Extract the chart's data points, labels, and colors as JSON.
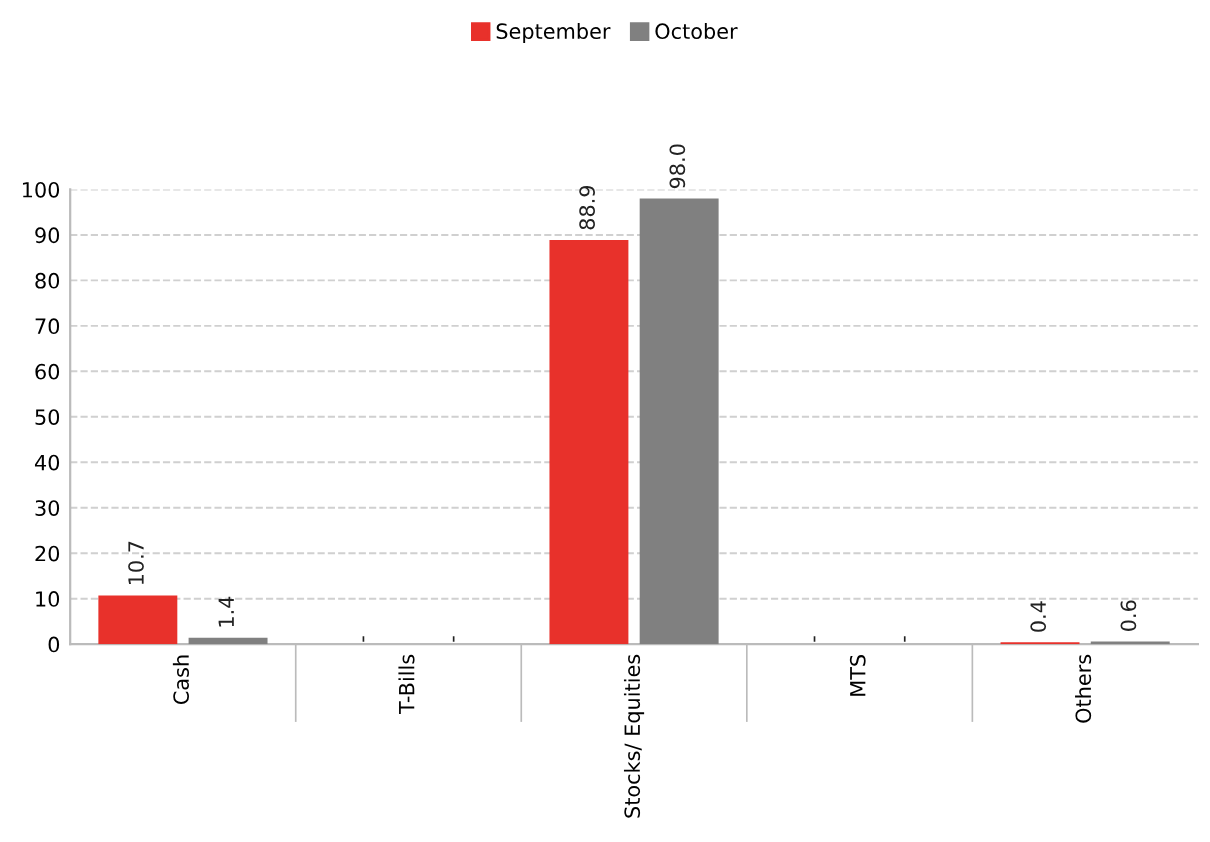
{
  "chart_data": {
    "type": "bar",
    "categories": [
      "Cash",
      "T-Bills",
      "Stocks/ Equities",
      "MTS",
      "Others"
    ],
    "series": [
      {
        "name": "September",
        "color": "#e8312b",
        "values": [
          10.7,
          null,
          88.9,
          null,
          0.4
        ],
        "value_labels": [
          "10.7",
          "-",
          "88.9",
          "-",
          "0.4"
        ]
      },
      {
        "name": "October",
        "color": "#808080",
        "values": [
          1.4,
          null,
          98.0,
          null,
          0.6
        ],
        "value_labels": [
          "1.4",
          "-",
          "98.0",
          "-",
          "0.6"
        ]
      }
    ],
    "ylim": [
      0,
      100
    ],
    "yticks": [
      0,
      10,
      20,
      30,
      40,
      50,
      60,
      70,
      80,
      90,
      100
    ],
    "grid": "y",
    "legend": "top"
  }
}
